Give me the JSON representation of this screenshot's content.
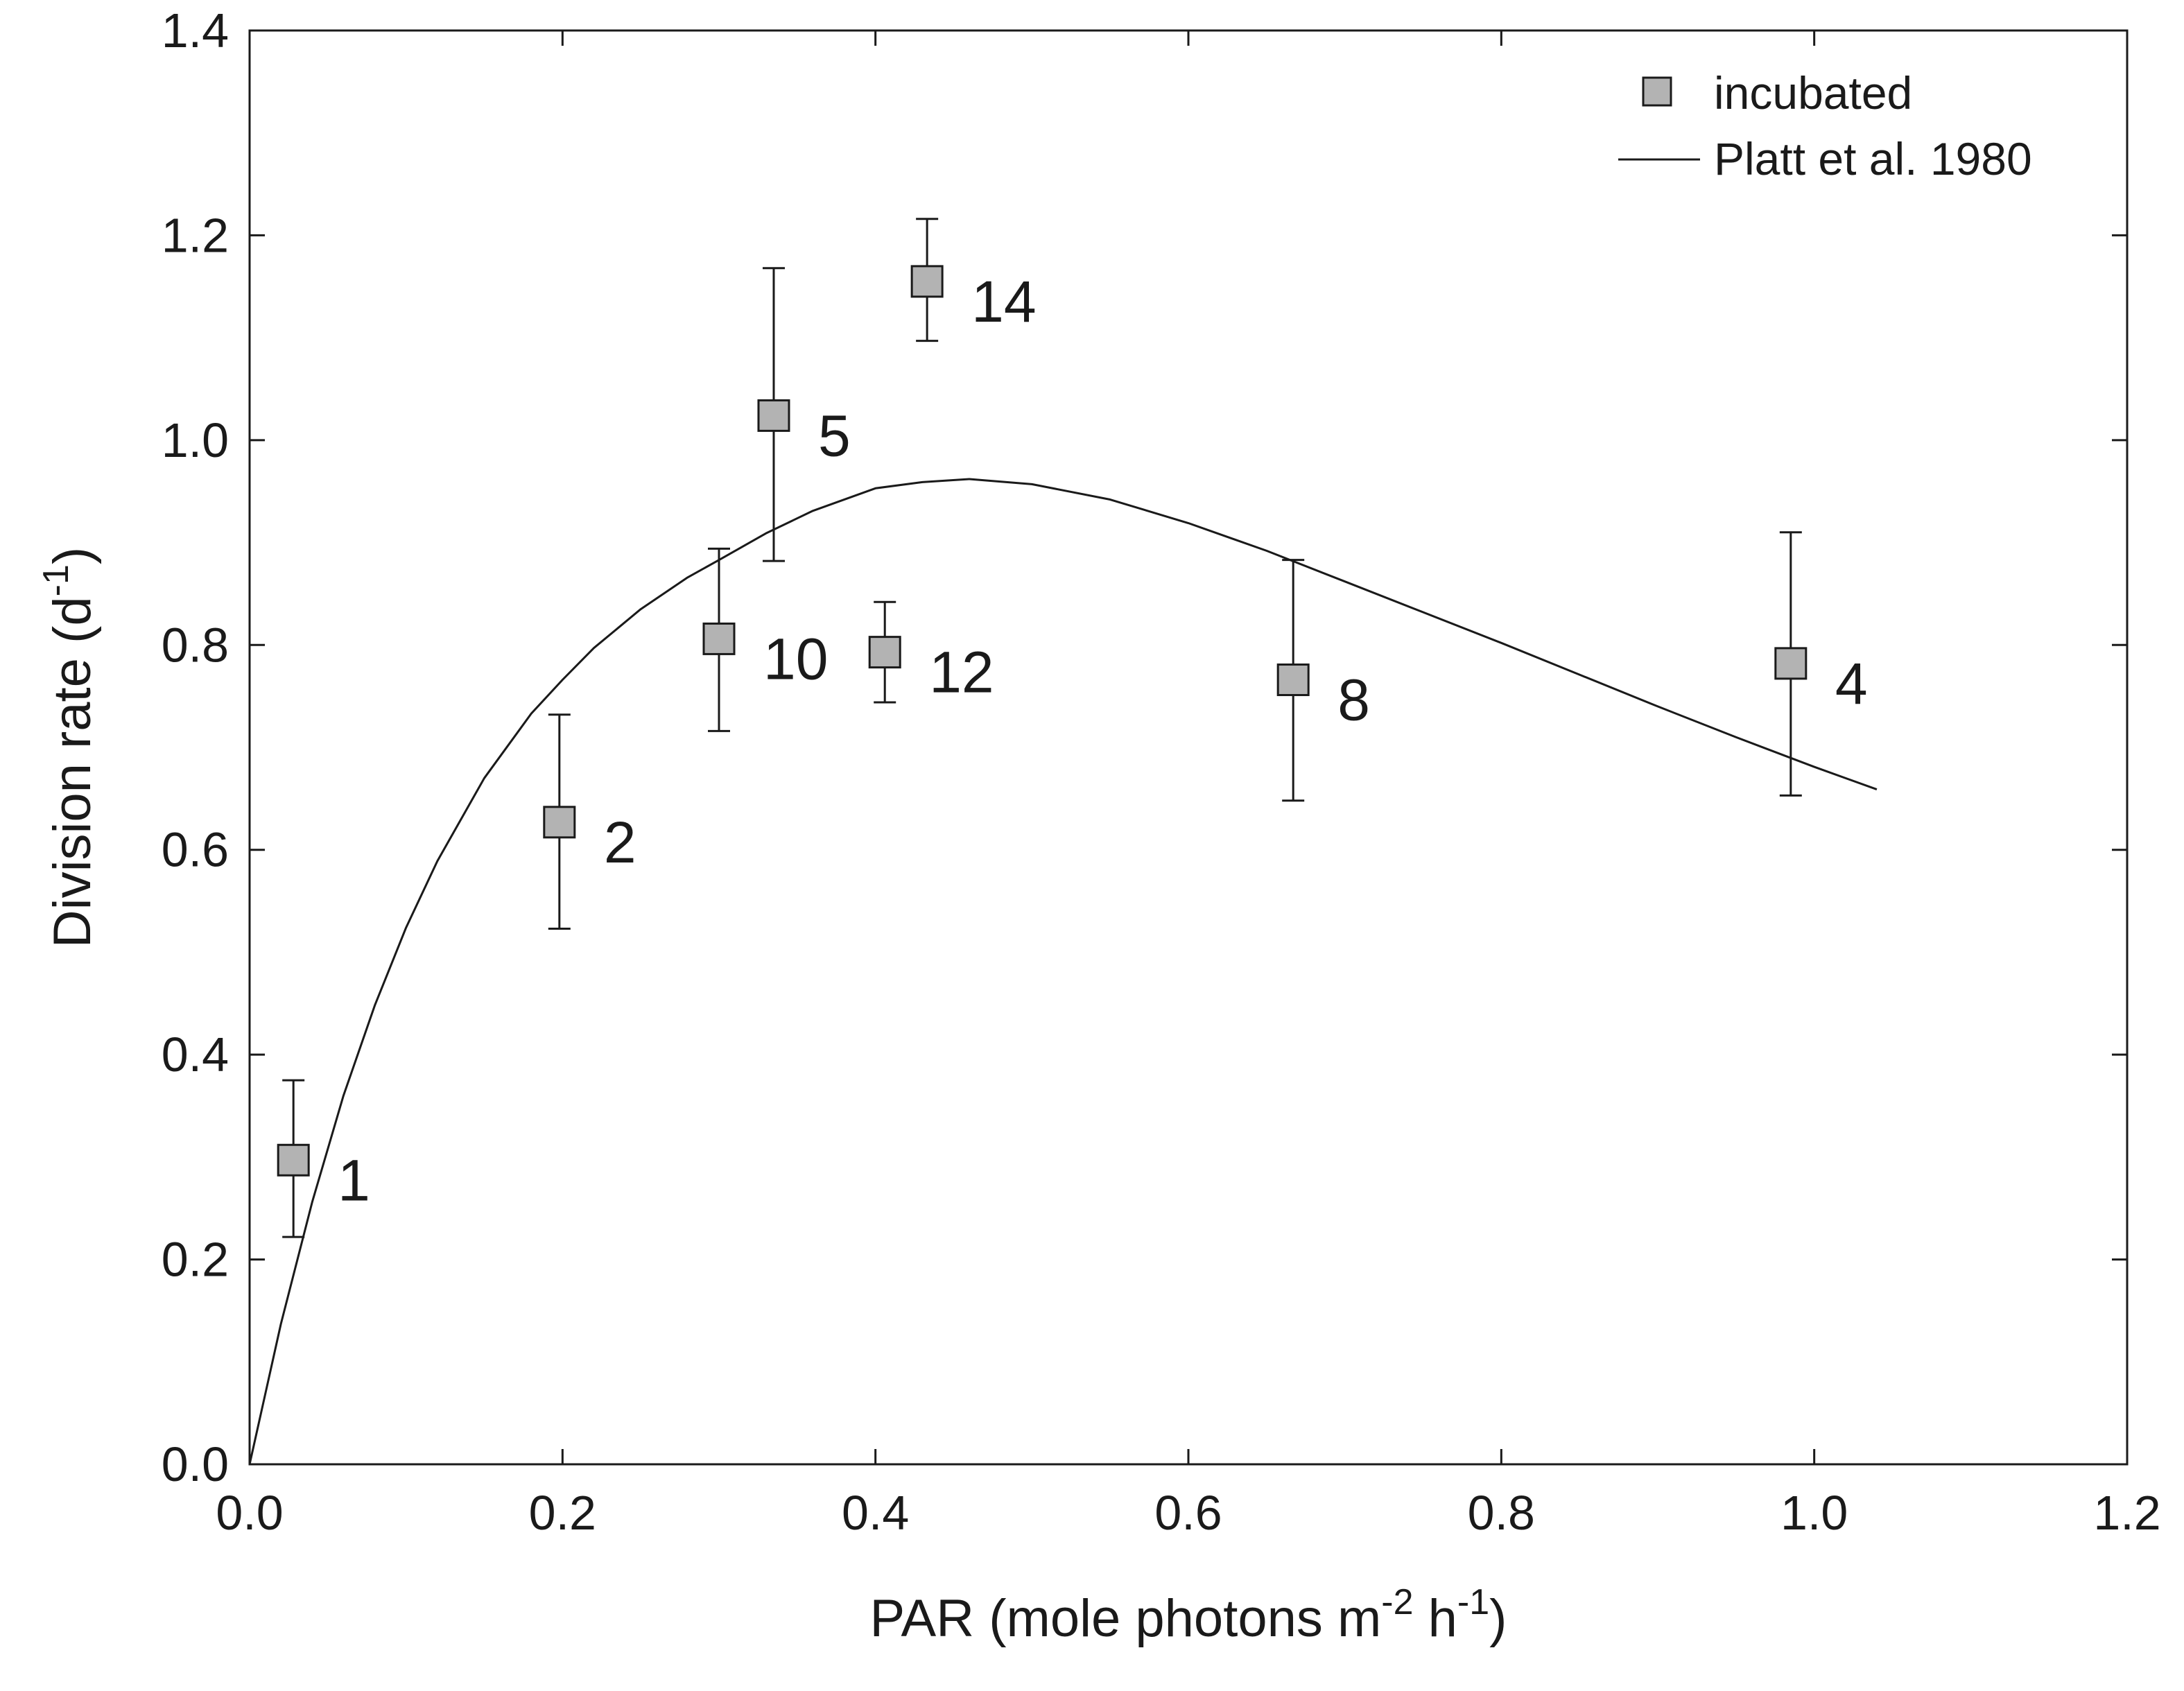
{
  "chart_data": {
    "type": "scatter",
    "title": "",
    "xlabel": {
      "main": "PAR (mole photons m",
      "sup1": "-2",
      "mid": " h",
      "sup2": "-1",
      "end": ")"
    },
    "ylabel": {
      "main": "Division rate (d",
      "sup": "-1",
      "end": ")"
    },
    "xlim": [
      0,
      1.2
    ],
    "ylim": [
      0,
      1.4
    ],
    "xticks": [
      "0.0",
      "0.2",
      "0.4",
      "0.6",
      "0.8",
      "1.0",
      "1.2"
    ],
    "yticks": [
      "0.0",
      "0.2",
      "0.4",
      "0.6",
      "0.8",
      "1.0",
      "1.2",
      "1.4"
    ],
    "grid": false,
    "legend": {
      "placement": "top-right",
      "entries": [
        "incubated",
        "Platt et al. 1980"
      ]
    },
    "series": [
      {
        "name": "incubated",
        "kind": "points-with-error",
        "color": "#b3b3b3",
        "points": [
          {
            "label": "1",
            "x": 0.028,
            "y": 0.297,
            "ylow": 0.222,
            "yhigh": 0.375
          },
          {
            "label": "2",
            "x": 0.198,
            "y": 0.627,
            "ylow": 0.523,
            "yhigh": 0.732
          },
          {
            "label": "10",
            "x": 0.3,
            "y": 0.806,
            "ylow": 0.716,
            "yhigh": 0.894
          },
          {
            "label": "5",
            "x": 0.335,
            "y": 1.024,
            "ylow": 0.882,
            "yhigh": 1.168
          },
          {
            "label": "12",
            "x": 0.406,
            "y": 0.793,
            "ylow": 0.744,
            "yhigh": 0.842
          },
          {
            "label": "14",
            "x": 0.433,
            "y": 1.155,
            "ylow": 1.097,
            "yhigh": 1.216
          },
          {
            "label": "8",
            "x": 0.667,
            "y": 0.766,
            "ylow": 0.648,
            "yhigh": 0.883
          },
          {
            "label": "4",
            "x": 0.985,
            "y": 0.782,
            "ylow": 0.653,
            "yhigh": 0.91
          }
        ]
      },
      {
        "name": "Platt et al. 1980",
        "kind": "line",
        "color": "#1a1a1a",
        "x": [
          0.0,
          0.02,
          0.04,
          0.06,
          0.08,
          0.1,
          0.12,
          0.15,
          0.18,
          0.2,
          0.22,
          0.25,
          0.28,
          0.3,
          0.33,
          0.36,
          0.4,
          0.43,
          0.46,
          0.5,
          0.55,
          0.6,
          0.65,
          0.7,
          0.75,
          0.8,
          0.85,
          0.9,
          0.95,
          1.0,
          1.04
        ],
        "y": [
          0.0,
          0.137,
          0.256,
          0.36,
          0.448,
          0.524,
          0.589,
          0.67,
          0.733,
          0.766,
          0.797,
          0.835,
          0.866,
          0.883,
          0.909,
          0.931,
          0.953,
          0.959,
          0.962,
          0.957,
          0.942,
          0.919,
          0.892,
          0.862,
          0.832,
          0.802,
          0.771,
          0.74,
          0.71,
          0.681,
          0.659
        ]
      }
    ]
  }
}
